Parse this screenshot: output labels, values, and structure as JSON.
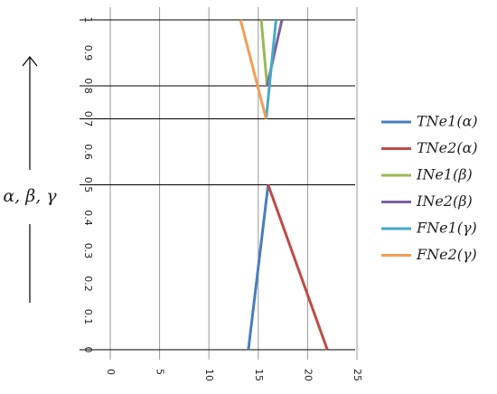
{
  "chart_data": {
    "type": "line",
    "ylabel": "α, β, γ",
    "xlim": [
      0,
      25
    ],
    "xticks": [
      0,
      5,
      10,
      15,
      20,
      25
    ],
    "ylim": [
      0,
      1
    ],
    "yticks": [
      0,
      0.1,
      0.2,
      0.3,
      0.4,
      0.5,
      0.6,
      0.7,
      0.8,
      0.9,
      1
    ],
    "hlines": [
      0,
      0.5,
      0.7,
      0.8,
      1
    ],
    "grid": true,
    "legend": "right",
    "series": [
      {
        "name": "TNe1(α)",
        "color": "#4a7ebb",
        "x": [
          14,
          16
        ],
        "values": [
          0,
          0.5
        ]
      },
      {
        "name": "TNe2(α)",
        "color": "#be4b48",
        "x": [
          16,
          22
        ],
        "values": [
          0.5,
          0
        ]
      },
      {
        "name": "INe1(β)",
        "color": "#98b954",
        "x": [
          15.3,
          15.9
        ],
        "values": [
          1,
          0.8
        ]
      },
      {
        "name": "INe2(β)",
        "color": "#7d60a0",
        "x": [
          17.4,
          15.9
        ],
        "values": [
          1,
          0.8
        ]
      },
      {
        "name": "FNe1(γ)",
        "color": "#46aac5",
        "x": [
          16.8,
          15.8
        ],
        "values": [
          1,
          0.7
        ]
      },
      {
        "name": "FNe2(γ)",
        "color": "#f59d56",
        "x": [
          13.2,
          15.8
        ],
        "values": [
          1,
          0.7
        ]
      }
    ]
  }
}
